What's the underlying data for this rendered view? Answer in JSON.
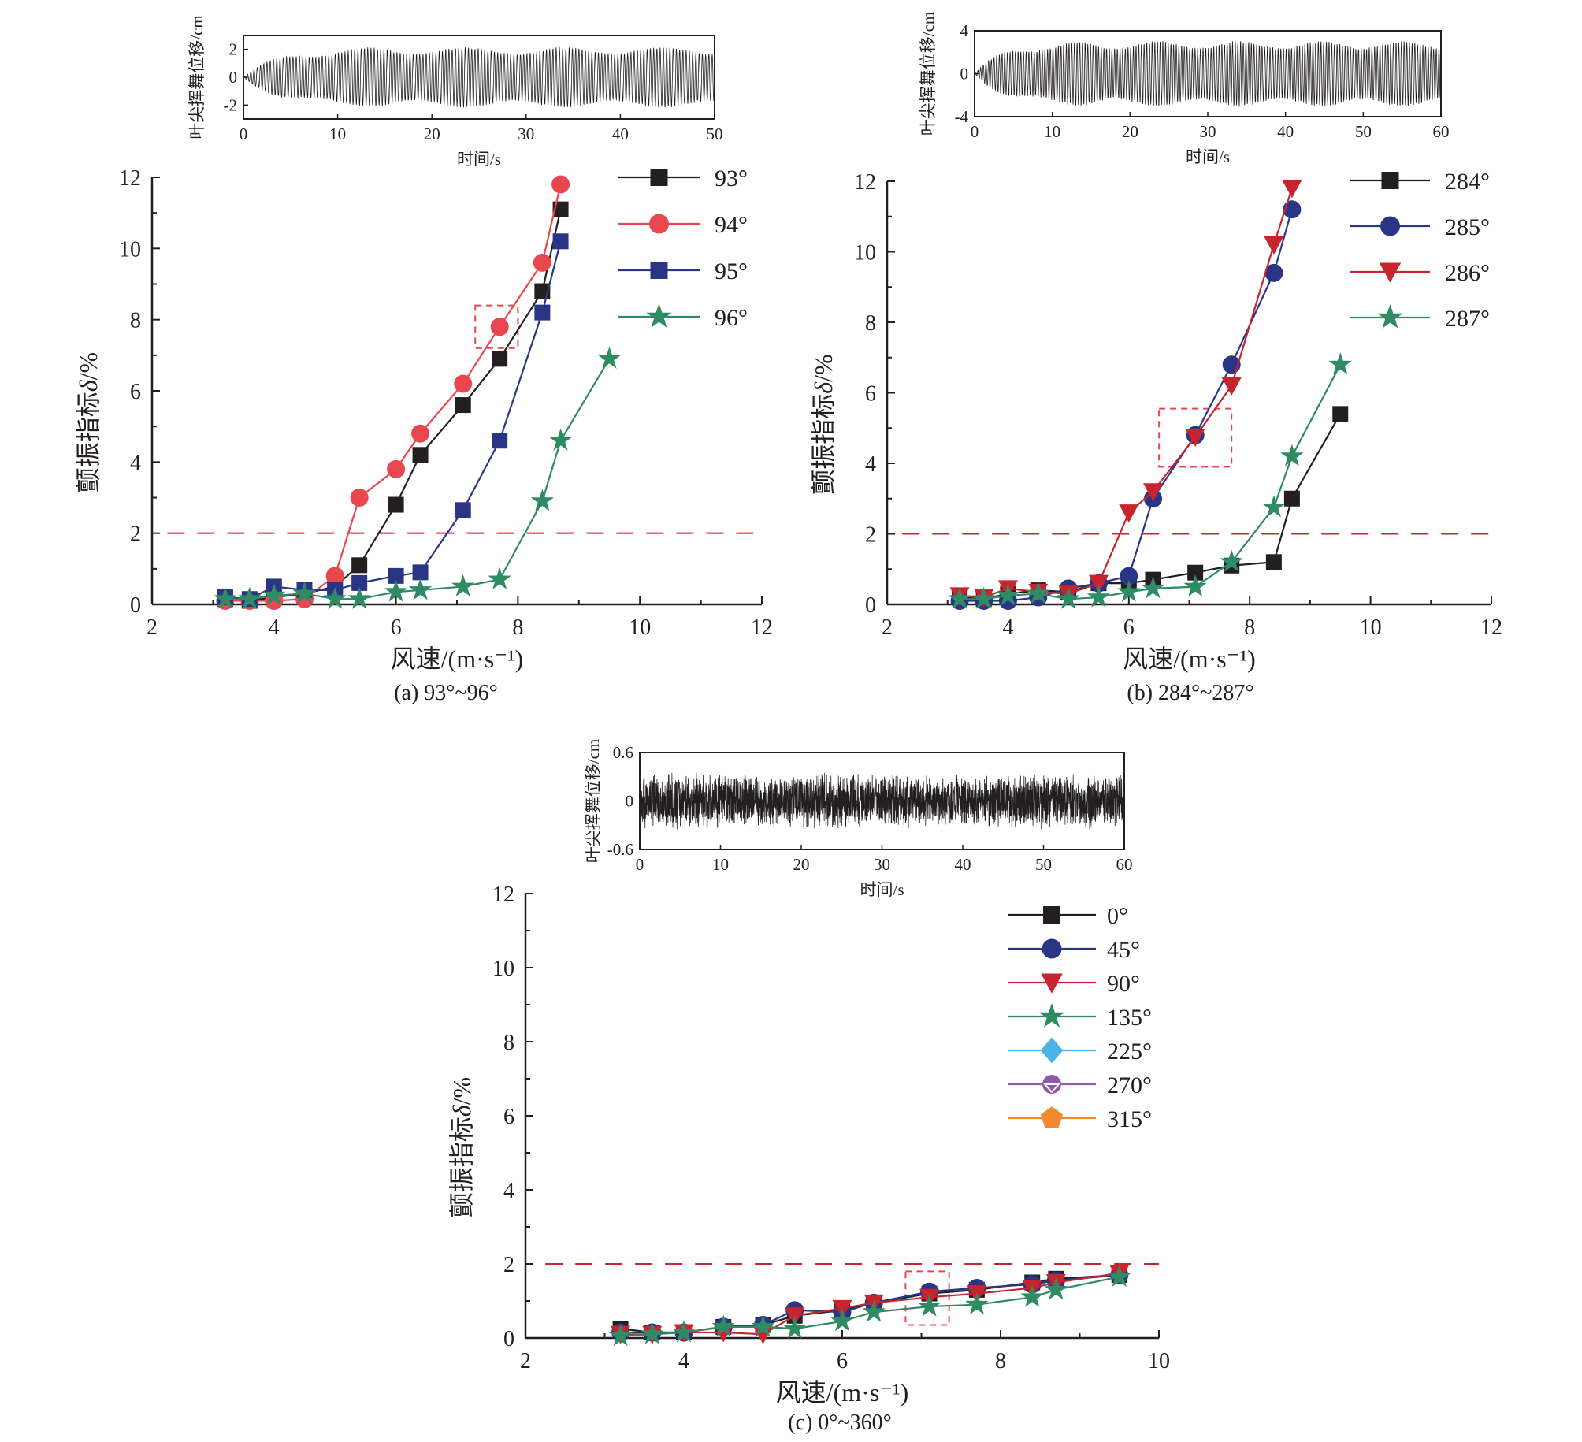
{
  "chart_data": [
    {
      "type": "line",
      "id": "a",
      "caption": "(a) 93°~96°",
      "xlabel": "风速/(m·s⁻¹)",
      "ylabel_main": "颤振指标",
      "ylabel_symbol": "δ",
      "ylabel_unit": "/%",
      "xlim": [
        2,
        12
      ],
      "ylim": [
        0,
        12
      ],
      "xticks": [
        2,
        4,
        6,
        8,
        10,
        12
      ],
      "yticks": [
        0,
        2,
        4,
        6,
        8,
        10,
        12
      ],
      "threshold": 2,
      "legend_position": "top-right",
      "highlight_box": {
        "x": [
          7.3,
          8.0
        ],
        "y": [
          7.2,
          8.4
        ]
      },
      "series": [
        {
          "name": "93°",
          "marker": "square",
          "color": "#231f20",
          "x": [
            3.2,
            3.6,
            4,
            4.5,
            5,
            5.4,
            6,
            6.4,
            7.1,
            7.7,
            8.4,
            8.7
          ],
          "y": [
            0.15,
            0.1,
            0.2,
            0.3,
            0.5,
            1.1,
            2.8,
            4.2,
            5.6,
            6.9,
            8.8,
            11.1
          ]
        },
        {
          "name": "94°",
          "marker": "circle",
          "color": "#e8474f",
          "x": [
            3.2,
            3.6,
            4,
            4.5,
            5,
            5.4,
            6,
            6.4,
            7.1,
            7.7,
            8.4,
            8.7
          ],
          "y": [
            0.1,
            0.1,
            0.1,
            0.15,
            0.8,
            3.0,
            3.8,
            4.8,
            6.2,
            7.8,
            9.6,
            11.8
          ]
        },
        {
          "name": "95°",
          "marker": "square",
          "color": "#2b3585",
          "x": [
            3.2,
            3.6,
            4,
            4.5,
            5,
            5.4,
            6,
            6.4,
            7.1,
            7.7,
            8.4,
            8.7
          ],
          "y": [
            0.2,
            0.15,
            0.5,
            0.4,
            0.4,
            0.6,
            0.8,
            0.9,
            2.65,
            4.6,
            8.2,
            10.2
          ]
        },
        {
          "name": "96°",
          "marker": "star",
          "color": "#2e8b63",
          "x": [
            3.2,
            3.6,
            4,
            4.5,
            5,
            5.4,
            6,
            6.4,
            7.1,
            7.7,
            8.4,
            8.7,
            9.5
          ],
          "y": [
            0.15,
            0.15,
            0.25,
            0.3,
            0.15,
            0.15,
            0.35,
            0.4,
            0.5,
            0.7,
            2.9,
            4.6,
            6.9
          ]
        }
      ],
      "inset": {
        "xlabel": "时间/s",
        "ylabel": "叶尖挥舞位移/cm",
        "xlim": [
          0,
          50
        ],
        "ylim": [
          -3,
          3
        ],
        "xticks": [
          0,
          10,
          20,
          30,
          40,
          50
        ],
        "yticks": [
          -2,
          0,
          2
        ],
        "signal": "periodic",
        "steady_amplitude": 2.0
      }
    },
    {
      "type": "line",
      "id": "b",
      "caption": "(b) 284°~287°",
      "xlabel": "风速/(m·s⁻¹)",
      "ylabel_main": "颤振指标",
      "ylabel_symbol": "δ",
      "ylabel_unit": "/%",
      "xlim": [
        2,
        12
      ],
      "ylim": [
        0,
        12
      ],
      "xticks": [
        2,
        4,
        6,
        8,
        10,
        12
      ],
      "yticks": [
        0,
        2,
        4,
        6,
        8,
        10,
        12
      ],
      "threshold": 2,
      "legend_position": "top-right",
      "highlight_box": {
        "x": [
          6.5,
          7.7
        ],
        "y": [
          3.9,
          5.55
        ]
      },
      "series": [
        {
          "name": "284°",
          "marker": "square",
          "color": "#231f20",
          "x": [
            3.2,
            3.6,
            4,
            4.5,
            5,
            5.5,
            6,
            6.4,
            7.1,
            7.7,
            8.4,
            8.7,
            9.5
          ],
          "y": [
            0.2,
            0.15,
            0.3,
            0.4,
            0.35,
            0.6,
            0.6,
            0.7,
            0.9,
            1.1,
            1.2,
            3.0,
            5.4
          ]
        },
        {
          "name": "285°",
          "marker": "circle",
          "color": "#2b3585",
          "x": [
            3.2,
            3.6,
            4,
            4.5,
            5,
            5.5,
            6,
            6.4,
            7.1,
            7.7,
            8.4,
            8.7
          ],
          "y": [
            0.1,
            0.1,
            0.1,
            0.2,
            0.45,
            0.6,
            0.8,
            3.0,
            4.8,
            6.8,
            9.4,
            11.2
          ]
        },
        {
          "name": "286°",
          "marker": "triangle-down",
          "color": "#c8242e",
          "x": [
            3.2,
            3.6,
            4,
            4.5,
            5,
            5.5,
            6,
            6.4,
            7.1,
            7.7,
            8.4,
            8.7
          ],
          "y": [
            0.25,
            0.2,
            0.45,
            0.35,
            0.3,
            0.6,
            2.6,
            3.2,
            4.75,
            6.2,
            10.2,
            11.8
          ]
        },
        {
          "name": "287°",
          "marker": "star",
          "color": "#2e8b63",
          "x": [
            3.2,
            3.6,
            4,
            4.5,
            5,
            5.5,
            6,
            6.4,
            7.1,
            7.7,
            8.4,
            8.7,
            9.5
          ],
          "y": [
            0.15,
            0.15,
            0.25,
            0.3,
            0.15,
            0.2,
            0.35,
            0.45,
            0.5,
            1.2,
            2.75,
            4.2,
            6.8
          ]
        }
      ],
      "inset": {
        "xlabel": "时间/s",
        "ylabel": "叶尖挥舞位移/cm",
        "xlim": [
          0,
          60
        ],
        "ylim": [
          -4,
          4
        ],
        "xticks": [
          0,
          10,
          20,
          30,
          40,
          50,
          60
        ],
        "yticks": [
          -4,
          0,
          4
        ],
        "signal": "periodic",
        "steady_amplitude": 2.8
      }
    },
    {
      "type": "line",
      "id": "c",
      "caption": "(c) 0°~360°",
      "xlabel": "风速/(m·s⁻¹)",
      "ylabel_main": "颤振指标",
      "ylabel_symbol": "δ",
      "ylabel_unit": "/%",
      "xlim": [
        2,
        10
      ],
      "ylim": [
        0,
        12
      ],
      "xticks": [
        2,
        4,
        6,
        8,
        10
      ],
      "yticks": [
        0,
        2,
        4,
        6,
        8,
        10,
        12
      ],
      "threshold": 2,
      "legend_position": "top-right",
      "highlight_box": {
        "x": [
          6.8,
          7.35
        ],
        "y": [
          0.35,
          1.8
        ]
      },
      "series": [
        {
          "name": "0°",
          "marker": "square",
          "color": "#231f20",
          "x": [
            3.2,
            3.6,
            4,
            4.5,
            5,
            5.4,
            6,
            6.4,
            7.1,
            7.7,
            8.4,
            8.7,
            9.5
          ],
          "y": [
            0.25,
            0.15,
            0.15,
            0.3,
            0.35,
            0.6,
            0.75,
            0.95,
            1.2,
            1.3,
            1.5,
            1.6,
            1.7
          ]
        },
        {
          "name": "45°",
          "marker": "circle",
          "color": "#2b3585",
          "x": [
            3.2,
            3.6,
            4,
            4.5,
            5,
            5.4,
            6,
            6.4,
            7.1,
            7.7,
            8.4,
            8.7,
            9.5
          ],
          "y": [
            0.15,
            0.15,
            0.15,
            0.3,
            0.35,
            0.75,
            0.7,
            0.95,
            1.25,
            1.35,
            1.45,
            1.55,
            1.7
          ]
        },
        {
          "name": "90°",
          "marker": "triangle-down",
          "color": "#c8242e",
          "x": [
            3.2,
            3.6,
            4,
            4.5,
            5,
            5.4,
            6,
            6.4,
            7.1,
            7.7,
            8.4,
            8.7,
            9.5
          ],
          "y": [
            0.1,
            0.1,
            0.15,
            0.15,
            0.1,
            0.6,
            0.8,
            0.95,
            1.1,
            1.2,
            1.35,
            1.5,
            1.75
          ]
        },
        {
          "name": "135°",
          "marker": "star",
          "color": "#2e8b63",
          "x": [
            3.2,
            3.6,
            4,
            4.5,
            5,
            5.4,
            6,
            6.4,
            7.1,
            7.7,
            8.4,
            8.7,
            9.5
          ],
          "y": [
            0.05,
            0.1,
            0.15,
            0.3,
            0.3,
            0.25,
            0.45,
            0.7,
            0.85,
            0.9,
            1.1,
            1.3,
            1.65
          ]
        },
        {
          "name": "225°",
          "marker": "diamond",
          "color": "#4cb3e6",
          "x": [],
          "y": []
        },
        {
          "name": "270°",
          "marker": "circle-open",
          "color": "#8e5aa8",
          "x": [],
          "y": []
        },
        {
          "name": "315°",
          "marker": "pentagon",
          "color": "#f18a2e",
          "x": [],
          "y": []
        }
      ],
      "inset": {
        "xlabel": "时间/s",
        "ylabel": "叶尖挥舞位移/cm",
        "xlim": [
          0,
          60
        ],
        "ylim": [
          -0.6,
          0.6
        ],
        "xticks": [
          0,
          10,
          20,
          30,
          40,
          50,
          60
        ],
        "yticks": [
          -0.6,
          0,
          0.6
        ],
        "signal": "random",
        "steady_amplitude": 0.3
      }
    }
  ]
}
